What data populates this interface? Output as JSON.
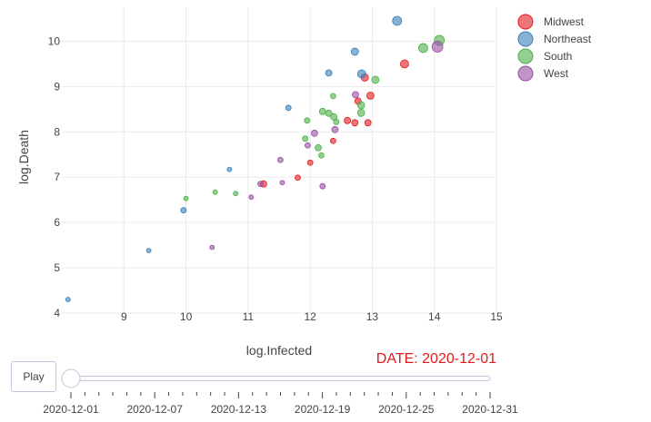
{
  "chart_data": {
    "type": "scatter",
    "xlabel": "log.Infected",
    "ylabel": "log.Death",
    "xlim": [
      8.0,
      15.0
    ],
    "ylim": [
      4.0,
      10.75
    ],
    "x_ticks": [
      9,
      10,
      11,
      12,
      13,
      14,
      15
    ],
    "y_ticks": [
      4,
      5,
      6,
      7,
      8,
      9,
      10
    ],
    "grid": true,
    "legend_position": "top-right",
    "series": [
      {
        "name": "Midwest",
        "color": "#e41a1c",
        "points": [
          {
            "x": 11.25,
            "y": 6.85,
            "size": 7
          },
          {
            "x": 11.8,
            "y": 6.99,
            "size": 6
          },
          {
            "x": 12.0,
            "y": 7.32,
            "size": 6
          },
          {
            "x": 12.37,
            "y": 7.8,
            "size": 6
          },
          {
            "x": 12.6,
            "y": 8.25,
            "size": 7
          },
          {
            "x": 12.72,
            "y": 8.2,
            "size": 7
          },
          {
            "x": 12.77,
            "y": 8.68,
            "size": 7
          },
          {
            "x": 12.93,
            "y": 8.2,
            "size": 7
          },
          {
            "x": 12.88,
            "y": 9.2,
            "size": 8
          },
          {
            "x": 12.97,
            "y": 8.8,
            "size": 8
          },
          {
            "x": 13.52,
            "y": 9.5,
            "size": 9
          }
        ]
      },
      {
        "name": "Northeast",
        "color": "#377eb8",
        "points": [
          {
            "x": 8.1,
            "y": 4.3,
            "size": 5
          },
          {
            "x": 9.4,
            "y": 5.38,
            "size": 5
          },
          {
            "x": 9.96,
            "y": 6.27,
            "size": 6
          },
          {
            "x": 10.7,
            "y": 7.17,
            "size": 5
          },
          {
            "x": 11.65,
            "y": 8.53,
            "size": 6
          },
          {
            "x": 12.3,
            "y": 9.3,
            "size": 7
          },
          {
            "x": 12.72,
            "y": 9.77,
            "size": 8
          },
          {
            "x": 12.83,
            "y": 9.28,
            "size": 9
          },
          {
            "x": 13.4,
            "y": 10.45,
            "size": 10
          }
        ]
      },
      {
        "name": "South",
        "color": "#4daf4a",
        "points": [
          {
            "x": 10.0,
            "y": 6.53,
            "size": 5
          },
          {
            "x": 10.47,
            "y": 6.67,
            "size": 5
          },
          {
            "x": 10.8,
            "y": 6.64,
            "size": 5
          },
          {
            "x": 11.92,
            "y": 7.85,
            "size": 6
          },
          {
            "x": 11.95,
            "y": 8.25,
            "size": 6
          },
          {
            "x": 12.13,
            "y": 7.65,
            "size": 7
          },
          {
            "x": 12.18,
            "y": 7.48,
            "size": 6
          },
          {
            "x": 12.2,
            "y": 8.45,
            "size": 7
          },
          {
            "x": 12.3,
            "y": 8.41,
            "size": 7
          },
          {
            "x": 12.38,
            "y": 8.33,
            "size": 7
          },
          {
            "x": 12.42,
            "y": 8.22,
            "size": 6
          },
          {
            "x": 12.37,
            "y": 8.79,
            "size": 6
          },
          {
            "x": 12.82,
            "y": 8.59,
            "size": 8
          },
          {
            "x": 12.82,
            "y": 8.42,
            "size": 8
          },
          {
            "x": 13.05,
            "y": 9.15,
            "size": 8
          },
          {
            "x": 13.82,
            "y": 9.85,
            "size": 10
          },
          {
            "x": 14.08,
            "y": 10.02,
            "size": 11
          }
        ]
      },
      {
        "name": "West",
        "color": "#984ea3",
        "points": [
          {
            "x": 10.42,
            "y": 5.45,
            "size": 5
          },
          {
            "x": 11.05,
            "y": 6.56,
            "size": 5
          },
          {
            "x": 11.2,
            "y": 6.85,
            "size": 6
          },
          {
            "x": 11.55,
            "y": 6.88,
            "size": 5
          },
          {
            "x": 11.52,
            "y": 7.38,
            "size": 6
          },
          {
            "x": 11.96,
            "y": 7.7,
            "size": 6
          },
          {
            "x": 12.07,
            "y": 7.97,
            "size": 7
          },
          {
            "x": 12.2,
            "y": 6.8,
            "size": 6
          },
          {
            "x": 12.4,
            "y": 8.05,
            "size": 7
          },
          {
            "x": 12.73,
            "y": 8.82,
            "size": 7
          },
          {
            "x": 14.05,
            "y": 9.88,
            "size": 12
          }
        ]
      }
    ]
  },
  "animation": {
    "frame_label": "DATE: 2020-12-01",
    "play_label": "Play",
    "slider_value": 0,
    "slider_labels": [
      "2020-12-01",
      "2020-12-07",
      "2020-12-13",
      "2020-12-19",
      "2020-12-25",
      "2020-12-31"
    ],
    "day_count": 31
  }
}
